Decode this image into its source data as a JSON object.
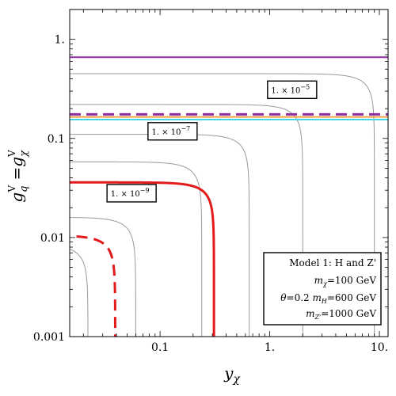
{
  "chart_data": {
    "type": "contour",
    "xlabel": "y_χ",
    "ylabel": "g_q^V = g_χ^V",
    "xscale": "log",
    "yscale": "log",
    "xlim": [
      0.015,
      12
    ],
    "ylim": [
      0.001,
      2
    ],
    "x_ticks": [
      {
        "value": 0.1,
        "label": "0.1"
      },
      {
        "value": 1,
        "label": "1."
      },
      {
        "value": 10,
        "label": "10."
      }
    ],
    "y_ticks": [
      {
        "value": 0.001,
        "label": "0.001"
      },
      {
        "value": 0.01,
        "label": "0.01"
      },
      {
        "value": 0.1,
        "label": "0.1"
      },
      {
        "value": 1,
        "label": "1."
      }
    ],
    "gray_contours": [
      {
        "x_asym": 0.022,
        "y_asym": 0.0085
      },
      {
        "x_asym": 0.06,
        "y_asym": 0.016
      },
      {
        "x_asym": 0.24,
        "y_asym": 0.058
      },
      {
        "x_asym": 0.65,
        "y_asym": 0.11
      },
      {
        "x_asym": 2.0,
        "y_asym": 0.22
      },
      {
        "x_asym": 9.0,
        "y_asym": 0.45
      }
    ],
    "series": [
      {
        "style": "solid",
        "color": "#e31a1c",
        "x_asym": 0.31,
        "y_asym": 0.036
      },
      {
        "style": "dashed",
        "color": "#e31a1c",
        "x_asym": 0.039,
        "y_asym": 0.0105
      }
    ],
    "horizontal_lines": [
      {
        "y": 0.66,
        "color": "#8e2ca1",
        "style": "solid"
      },
      {
        "y": 0.175,
        "color": "#8e2ca1",
        "style": "dashed"
      },
      {
        "y": 0.165,
        "color": "#f5a04c",
        "style": "solid"
      },
      {
        "y": 0.155,
        "color": "#3fd6e6",
        "style": "solid"
      }
    ],
    "contour_labels": [
      {
        "base": "1. × 10",
        "exp": "−5",
        "x": 1.6,
        "y": 0.31
      },
      {
        "base": "1. × 10",
        "exp": "−7",
        "x": 0.13,
        "y": 0.118
      },
      {
        "base": "1. × 10",
        "exp": "−9",
        "x": 0.055,
        "y": 0.028
      }
    ],
    "legend": {
      "placement": "bottom-right",
      "lines": [
        "Model 1: H and Z'",
        "m_χ=100 GeV",
        "θ=0.2  m_H=600 GeV",
        "m_Z'=1000 GeV"
      ]
    }
  }
}
